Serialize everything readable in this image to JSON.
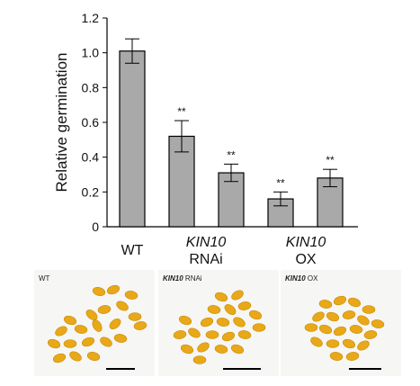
{
  "chart_data": {
    "type": "bar",
    "ylabel": "Relative germination",
    "ylim": [
      0,
      1.2
    ],
    "yticks": [
      "0",
      "0.2",
      "0.4",
      "0.6",
      "0.8",
      "1.0",
      "1.2"
    ],
    "bars": [
      {
        "value": 1.01,
        "error": 0.07,
        "annotation": ""
      },
      {
        "value": 0.52,
        "error": 0.09,
        "annotation": "**"
      },
      {
        "value": 0.31,
        "error": 0.05,
        "annotation": "**"
      },
      {
        "value": 0.16,
        "error": 0.04,
        "annotation": "**"
      },
      {
        "value": 0.28,
        "error": 0.05,
        "annotation": "**"
      }
    ],
    "groups": [
      {
        "line1": "WT",
        "line1_italic": false,
        "line2": ""
      },
      {
        "line1": "KIN10",
        "line1_italic": true,
        "line2": "RNAi"
      },
      {
        "line1": "KIN10",
        "line1_italic": true,
        "line2": "OX"
      }
    ],
    "bar_color": "#a9a9a9"
  },
  "panels": [
    {
      "gene": "",
      "label": "WT"
    },
    {
      "gene": "KIN10",
      "label": " RNAi"
    },
    {
      "gene": "KIN10",
      "label": " OX"
    }
  ],
  "seed_color": "#e8a818"
}
